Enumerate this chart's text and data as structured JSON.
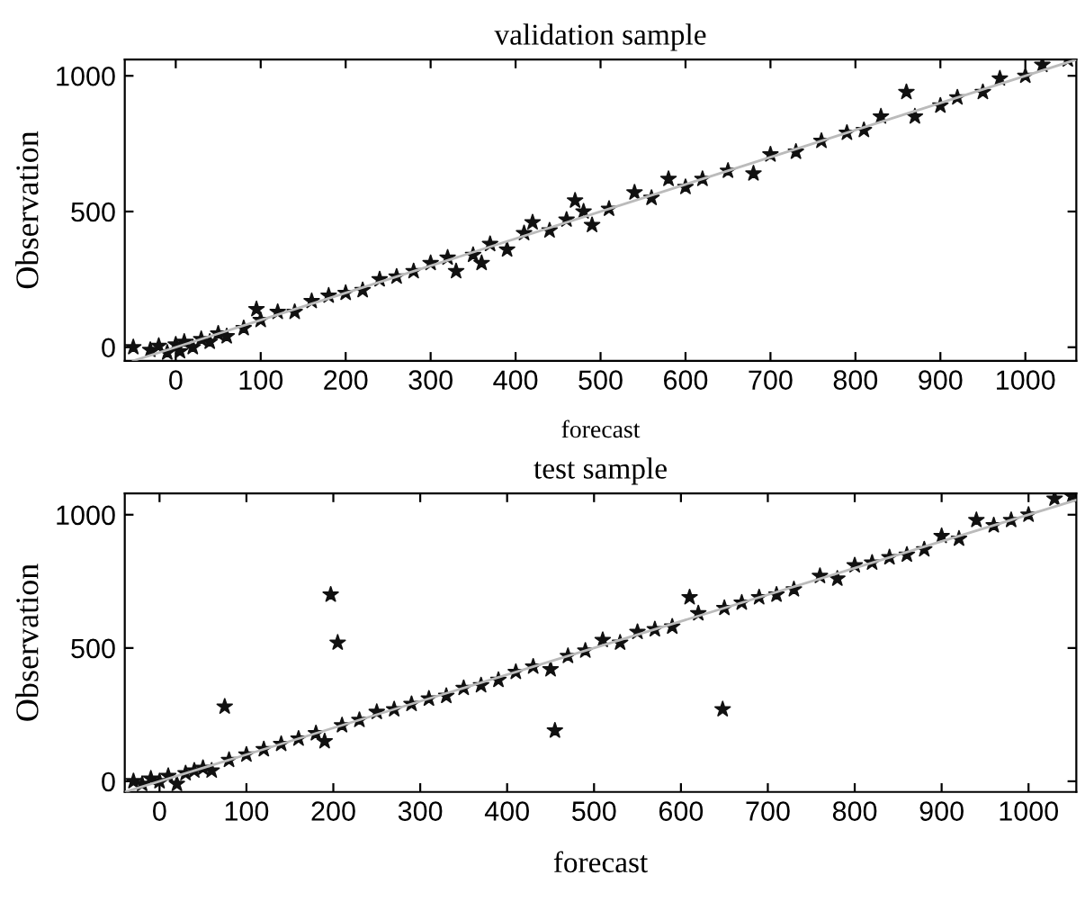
{
  "chart_data": [
    {
      "type": "scatter",
      "title": "validation sample",
      "xlabel": "forecast",
      "ylabel": "Observation",
      "xlim": [
        -60,
        1060
      ],
      "ylim": [
        -50,
        1060
      ],
      "xticks": [
        0,
        100,
        200,
        300,
        400,
        500,
        600,
        700,
        800,
        900,
        1000
      ],
      "yticks": [
        0,
        500,
        1000
      ],
      "grid": false,
      "legend": false,
      "marker": "star",
      "series": [
        {
          "color": "#111111",
          "x": [
            -50,
            -30,
            -20,
            -10,
            0,
            5,
            10,
            20,
            30,
            40,
            50,
            60,
            80,
            95,
            100,
            120,
            140,
            160,
            180,
            200,
            220,
            240,
            260,
            280,
            300,
            320,
            330,
            350,
            360,
            370,
            390,
            410,
            420,
            440,
            460,
            470,
            480,
            490,
            510,
            540,
            560,
            580,
            600,
            620,
            650,
            680,
            700,
            730,
            760,
            790,
            810,
            830,
            860,
            870,
            900,
            920,
            950,
            970,
            1000,
            1020,
            1050
          ],
          "values": [
            0,
            -10,
            5,
            -20,
            10,
            -15,
            20,
            0,
            30,
            20,
            50,
            40,
            70,
            140,
            100,
            130,
            130,
            170,
            190,
            200,
            210,
            250,
            260,
            280,
            310,
            330,
            280,
            340,
            310,
            380,
            360,
            420,
            460,
            430,
            470,
            540,
            500,
            450,
            510,
            570,
            550,
            620,
            590,
            620,
            650,
            640,
            710,
            720,
            760,
            790,
            800,
            850,
            940,
            850,
            890,
            920,
            940,
            990,
            1000,
            1040,
            1060
          ]
        },
        {
          "type": "line",
          "color": "#bbbbbb",
          "marker": "none",
          "x": [
            -50,
            1060
          ],
          "values": [
            -50,
            1060
          ]
        }
      ]
    },
    {
      "type": "scatter",
      "title": "test sample",
      "xlabel": "forecast",
      "ylabel": "Observation",
      "xlim": [
        -40,
        1055
      ],
      "ylim": [
        -40,
        1080
      ],
      "xticks": [
        0,
        100,
        200,
        300,
        400,
        500,
        600,
        700,
        800,
        900,
        1000
      ],
      "yticks": [
        0,
        500,
        1000
      ],
      "grid": false,
      "legend": false,
      "marker": "star",
      "series": [
        {
          "color": "#111111",
          "x": [
            -30,
            -20,
            -10,
            0,
            10,
            20,
            30,
            40,
            50,
            60,
            75,
            80,
            100,
            120,
            140,
            160,
            180,
            190,
            197,
            205,
            210,
            230,
            250,
            270,
            290,
            310,
            330,
            350,
            370,
            390,
            410,
            430,
            450,
            455,
            470,
            490,
            510,
            530,
            550,
            570,
            590,
            610,
            620,
            648,
            650,
            670,
            690,
            710,
            730,
            760,
            780,
            800,
            820,
            840,
            860,
            880,
            900,
            920,
            940,
            960,
            980,
            1000,
            1030,
            1050
          ],
          "values": [
            0,
            -10,
            10,
            0,
            20,
            -10,
            30,
            40,
            50,
            40,
            280,
            80,
            100,
            120,
            140,
            160,
            180,
            150,
            700,
            520,
            210,
            230,
            260,
            270,
            290,
            310,
            320,
            350,
            360,
            380,
            410,
            430,
            420,
            190,
            470,
            490,
            530,
            520,
            560,
            570,
            580,
            690,
            630,
            270,
            650,
            670,
            690,
            700,
            720,
            770,
            760,
            810,
            820,
            840,
            850,
            870,
            920,
            910,
            980,
            960,
            980,
            1000,
            1060,
            1070
          ]
        },
        {
          "type": "line",
          "color": "#bbbbbb",
          "marker": "none",
          "x": [
            -40,
            1055
          ],
          "values": [
            -40,
            1055
          ]
        }
      ]
    }
  ]
}
